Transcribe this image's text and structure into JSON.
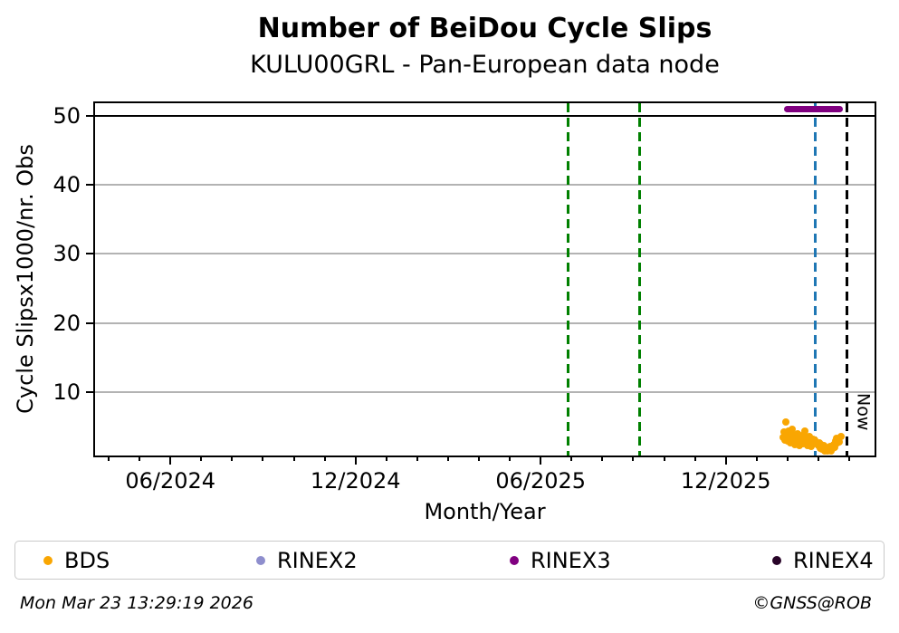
{
  "header": {
    "title": "Number of BeiDou Cycle Slips",
    "subtitle": "KULU00GRL - Pan-European data node"
  },
  "chart_data": {
    "type": "scatter",
    "title": "Number of BeiDou Cycle Slips",
    "subtitle": "KULU00GRL - Pan-European data node",
    "xlabel": "Month/Year",
    "ylabel": "Cycle Slipsx1000/nr. Obs",
    "x_axis": {
      "start": "2024-03-18",
      "end": "2026-04-26",
      "major_ticks": [
        {
          "label": "06/2024",
          "date": "2024-06-01"
        },
        {
          "label": "12/2024",
          "date": "2024-12-01"
        },
        {
          "label": "06/2025",
          "date": "2025-06-01"
        },
        {
          "label": "12/2025",
          "date": "2025-12-01"
        }
      ],
      "minor_tick_interval_months": 1
    },
    "y_axis": {
      "min": 0.8,
      "max": 51.8,
      "ticks": [
        10,
        20,
        30,
        40,
        50
      ]
    },
    "gridlines": {
      "values": [
        10,
        20,
        30,
        40
      ],
      "color": "#b3b3b3"
    },
    "threshold_line": {
      "value": 50,
      "color": "#000000"
    },
    "vlines": [
      {
        "name": "green-dashed-vline-1",
        "date": "2025-06-28",
        "color": "#008000",
        "width": 3,
        "label": ""
      },
      {
        "name": "green-dashed-vline-2",
        "date": "2025-09-07",
        "color": "#008000",
        "width": 3,
        "label": ""
      },
      {
        "name": "blue-dashed-vline",
        "date": "2026-02-28",
        "color": "#1f77b4",
        "width": 3,
        "label": ""
      },
      {
        "name": "now-dashed-vline",
        "date": "2026-03-29",
        "color": "#000000",
        "width": 2.5,
        "label": "Now"
      }
    ],
    "series": [
      {
        "name": "BDS",
        "color": "#f9a602",
        "style": "scatter",
        "points": [
          [
            "2026-01-27",
            3.4
          ],
          [
            "2026-01-28",
            4.2
          ],
          [
            "2026-01-29",
            3.0
          ],
          [
            "2026-01-30",
            5.6
          ],
          [
            "2026-01-31",
            3.8
          ],
          [
            "2026-02-01",
            2.9
          ],
          [
            "2026-02-02",
            4.4
          ],
          [
            "2026-02-03",
            3.2
          ],
          [
            "2026-02-04",
            2.6
          ],
          [
            "2026-02-05",
            3.9
          ],
          [
            "2026-02-06",
            4.6
          ],
          [
            "2026-02-07",
            3.1
          ],
          [
            "2026-02-08",
            2.4
          ],
          [
            "2026-02-09",
            3.3
          ],
          [
            "2026-02-10",
            2.8
          ],
          [
            "2026-02-11",
            4.0
          ],
          [
            "2026-02-12",
            3.5
          ],
          [
            "2026-02-13",
            2.2
          ],
          [
            "2026-02-14",
            2.9
          ],
          [
            "2026-02-15",
            3.7
          ],
          [
            "2026-02-16",
            2.5
          ],
          [
            "2026-02-17",
            3.1
          ],
          [
            "2026-02-18",
            4.3
          ],
          [
            "2026-02-19",
            2.7
          ],
          [
            "2026-02-20",
            3.4
          ],
          [
            "2026-02-21",
            2.3
          ],
          [
            "2026-02-22",
            2.9
          ],
          [
            "2026-02-23",
            3.6
          ],
          [
            "2026-02-24",
            2.1
          ],
          [
            "2026-02-25",
            2.8
          ],
          [
            "2026-02-26",
            3.2
          ],
          [
            "2026-02-27",
            2.5
          ],
          [
            "2026-02-28",
            3.0
          ],
          [
            "2026-03-01",
            2.3
          ],
          [
            "2026-03-02",
            2.7
          ],
          [
            "2026-03-03",
            1.9
          ],
          [
            "2026-03-04",
            2.4
          ],
          [
            "2026-03-05",
            1.7
          ],
          [
            "2026-03-06",
            2.2
          ],
          [
            "2026-03-07",
            1.5
          ],
          [
            "2026-03-08",
            2.0
          ],
          [
            "2026-03-09",
            1.8
          ],
          [
            "2026-03-10",
            1.4
          ],
          [
            "2026-03-11",
            1.9
          ],
          [
            "2026-03-12",
            1.6
          ],
          [
            "2026-03-13",
            2.1
          ],
          [
            "2026-03-14",
            1.5
          ],
          [
            "2026-03-15",
            1.8
          ],
          [
            "2026-03-16",
            2.4
          ],
          [
            "2026-03-17",
            2.0
          ],
          [
            "2026-03-18",
            2.9
          ],
          [
            "2026-03-19",
            3.3
          ],
          [
            "2026-03-20",
            2.6
          ],
          [
            "2026-03-21",
            3.1
          ],
          [
            "2026-03-22",
            2.8
          ],
          [
            "2026-03-23",
            3.5
          ]
        ]
      },
      {
        "name": "RINEX2",
        "color": "#8e8ecd",
        "style": "scatter",
        "points": []
      },
      {
        "name": "RINEX3",
        "color": "#800080",
        "style": "thick-line",
        "points": [
          [
            "2026-01-28",
            51
          ],
          [
            "2026-03-25",
            51
          ]
        ]
      },
      {
        "name": "RINEX4",
        "color": "#280428",
        "style": "scatter",
        "points": []
      }
    ],
    "legend_position": "bottom"
  },
  "legend": {
    "items": [
      {
        "label": "BDS",
        "color": "#f9a602"
      },
      {
        "label": "RINEX2",
        "color": "#8e8ecd"
      },
      {
        "label": "RINEX3",
        "color": "#800080"
      },
      {
        "label": "RINEX4",
        "color": "#280428"
      }
    ]
  },
  "footer": {
    "timestamp": "Mon Mar 23 13:29:19 2026",
    "copyright": "©GNSS@ROB"
  }
}
